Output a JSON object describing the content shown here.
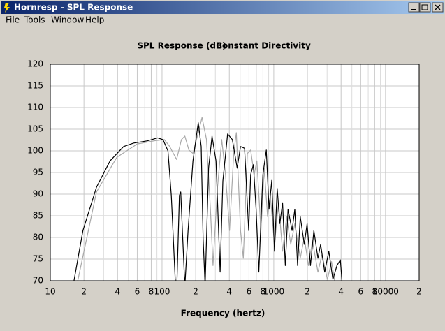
{
  "window": {
    "title": "Hornresp - SPL Response"
  },
  "menu": [
    "File",
    "Tools",
    "Window",
    "Help"
  ],
  "chart_data": {
    "type": "line",
    "title": "SPL Response (dB)",
    "subtitle": "Constant Directivity",
    "x_label": "Frequency (hertz)",
    "x_scale": "log",
    "grid": true,
    "xlim": [
      10,
      20000
    ],
    "ylim": [
      70,
      120
    ],
    "yticks": [
      70,
      75,
      80,
      85,
      90,
      95,
      100,
      105,
      110,
      115,
      120
    ],
    "xticks": [
      10,
      {
        "value": 20,
        "label": "2"
      },
      {
        "value": 40,
        "label": "4"
      },
      {
        "value": 60,
        "label": "6"
      },
      {
        "value": 80,
        "label": "8"
      },
      100,
      {
        "value": 200,
        "label": "2"
      },
      {
        "value": 400,
        "label": "4"
      },
      {
        "value": 600,
        "label": "6"
      },
      {
        "value": 800,
        "label": "8"
      },
      1000,
      {
        "value": 2000,
        "label": "2"
      },
      {
        "value": 4000,
        "label": "4"
      },
      {
        "value": 6000,
        "label": "6"
      },
      {
        "value": 8000,
        "label": "8"
      },
      10000,
      {
        "value": 20000,
        "label": "2"
      }
    ],
    "xminor": [
      30,
      50,
      70,
      90,
      300,
      500,
      700,
      900,
      3000,
      5000,
      7000,
      9000
    ],
    "series": [
      {
        "color": "#a8a8a8",
        "x": [
          17.6,
          25.9,
          39.4,
          60,
          85,
          105,
          117,
          135,
          149,
          160,
          174,
          189,
          211,
          228,
          250,
          271,
          286,
          313,
          342,
          370,
          402,
          438,
          462,
          504,
          534,
          580,
          621,
          667,
          706,
          767,
          822,
          880,
          931,
          1014,
          1103,
          1199,
          1304,
          1418,
          1543,
          1726,
          1877,
          2042,
          2221,
          2484,
          2702,
          3022,
          3287,
          3575
        ],
        "values": [
          70,
          90.5,
          98.5,
          101.6,
          102.3,
          102.6,
          101,
          98,
          102.6,
          103.4,
          100.2,
          99.4,
          104.2,
          107.7,
          102.6,
          86.5,
          73.5,
          91.3,
          102.6,
          94.5,
          81.6,
          99.4,
          104.2,
          81.6,
          75.2,
          99.4,
          100.2,
          94.5,
          97.7,
          81.6,
          96,
          84.8,
          89.7,
          78.4,
          88,
          76.8,
          84.8,
          78.4,
          83.2,
          75.2,
          80,
          73.5,
          79.2,
          72,
          76,
          70.3,
          74.4,
          68.7
        ]
      },
      {
        "color": "#000000",
        "x": [
          16.3,
          19.6,
          25.9,
          34.3,
          45.3,
          55.9,
          74,
          91.3,
          102,
          113,
          121,
          126,
          131,
          135,
          143,
          147,
          153,
          160,
          171,
          189,
          211,
          224,
          233,
          243,
          261,
          280,
          304,
          331,
          350,
          386,
          426,
          470,
          504,
          548,
          596,
          621,
          657,
          695,
          735,
          799,
          857,
          907,
          959,
          1014,
          1073,
          1134,
          1199,
          1269,
          1342,
          1459,
          1543,
          1633,
          1726,
          1877,
          1986,
          2130,
          2284,
          2484,
          2627,
          2857,
          3108,
          3380,
          3676,
          3941,
          4111
        ],
        "values": [
          70,
          81.6,
          91.6,
          97.7,
          101,
          101.8,
          102.3,
          103,
          102.6,
          100,
          89.7,
          80,
          70.6,
          67,
          89.7,
          90.5,
          80,
          68.7,
          81.6,
          97.7,
          106.5,
          101,
          80,
          68.7,
          96,
          103.4,
          97.7,
          72,
          93,
          103.9,
          102.6,
          96,
          101,
          100.6,
          81.6,
          94.5,
          96.8,
          86.5,
          72,
          94.5,
          100.2,
          86.5,
          93.2,
          76.8,
          91.3,
          83.2,
          88,
          73.5,
          86.5,
          81.6,
          86.5,
          73.5,
          84.8,
          78.4,
          83.2,
          73.5,
          81.6,
          75.2,
          78.4,
          72,
          76.8,
          70.3,
          73.5,
          74.8,
          68.7
        ]
      }
    ]
  }
}
